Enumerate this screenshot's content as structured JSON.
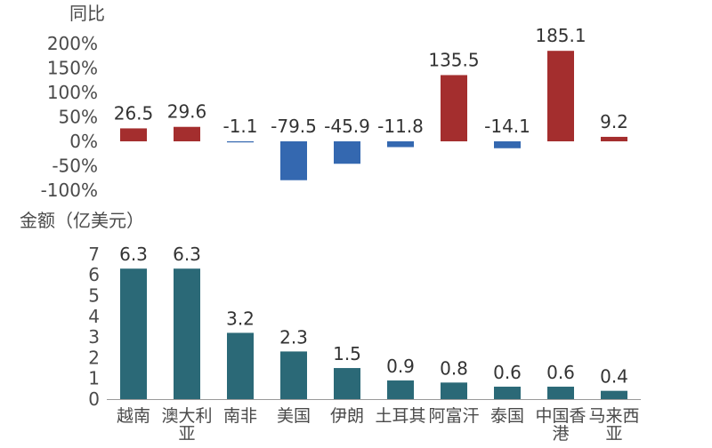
{
  "colors": {
    "positive": "#A42E2E",
    "negative": "#3468B0",
    "amount": "#2B6977",
    "text": "#4a4a4a",
    "axis": "#999999"
  },
  "chart_data": [
    {
      "type": "bar",
      "ylabel": "同比",
      "categories": [
        "越南",
        "澳大利亚",
        "南非",
        "美国",
        "伊朗",
        "土耳其",
        "阿富汗",
        "泰国",
        "中国香港",
        "马来西亚"
      ],
      "values": [
        26.5,
        29.6,
        -1.1,
        -79.5,
        -45.9,
        -11.8,
        135.5,
        -14.1,
        185.1,
        9.2
      ],
      "value_labels": [
        "26.5",
        "29.6",
        "-1.1",
        "-79.5",
        "-45.9",
        "-11.8",
        "135.5",
        "-14.1",
        "185.1",
        "9.2"
      ],
      "ylim": [
        -100,
        200
      ],
      "yticks": [
        "200%",
        "150%",
        "100%",
        "50%",
        "0%",
        "-50%",
        "-100%"
      ]
    },
    {
      "type": "bar",
      "ylabel": "金额（亿美元）",
      "categories": [
        "越南",
        "澳大利亚",
        "南非",
        "美国",
        "伊朗",
        "土耳其",
        "阿富汗",
        "泰国",
        "中国香港",
        "马来西亚"
      ],
      "category_lines": [
        [
          "越南"
        ],
        [
          "澳大利",
          "亚"
        ],
        [
          "南非"
        ],
        [
          "美国"
        ],
        [
          "伊朗"
        ],
        [
          "土耳其"
        ],
        [
          "阿富汗"
        ],
        [
          "泰国"
        ],
        [
          "中国香",
          "港"
        ],
        [
          "马来西",
          "亚"
        ]
      ],
      "values": [
        6.3,
        6.3,
        3.2,
        2.3,
        1.5,
        0.9,
        0.8,
        0.6,
        0.6,
        0.4
      ],
      "value_labels": [
        "6.3",
        "6.3",
        "3.2",
        "2.3",
        "1.5",
        "0.9",
        "0.8",
        "0.6",
        "0.6",
        "0.4"
      ],
      "ylim": [
        0,
        7
      ],
      "yticks": [
        "7",
        "6",
        "5",
        "4",
        "3",
        "2",
        "1",
        "0"
      ]
    }
  ]
}
